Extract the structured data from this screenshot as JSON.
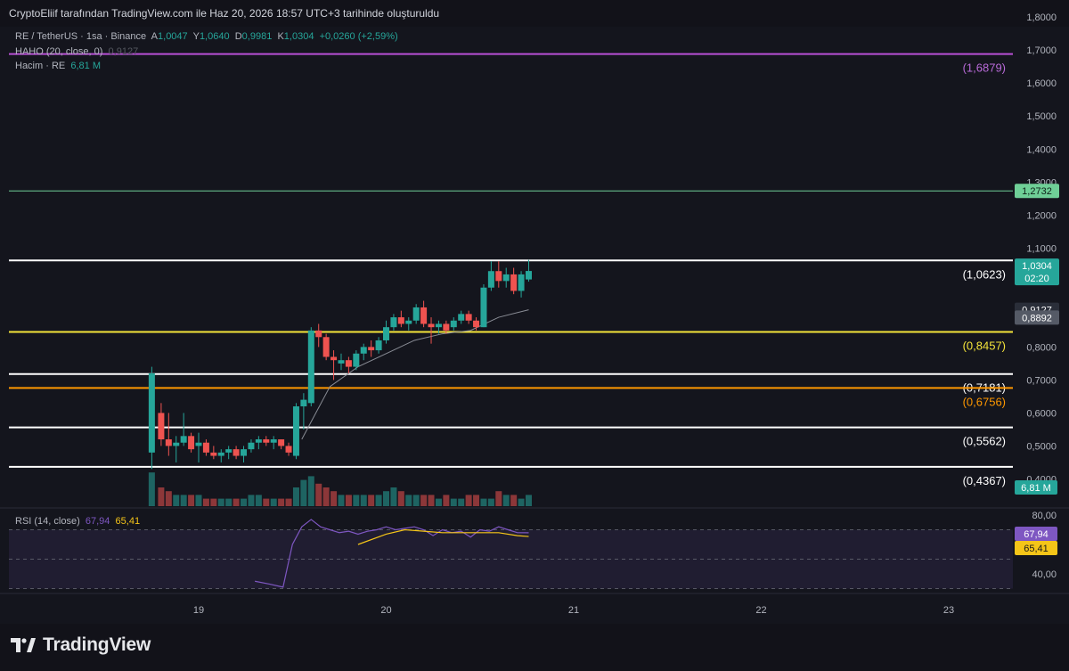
{
  "header": {
    "attribution": "CryptoEliif tarafından TradingView.com ile Haz 20, 2026 18:57 UTC+3 tarihinde oluşturuldu"
  },
  "legend": {
    "symbol": "RE / TetherUS · 1sa · Binance",
    "o_label": "A",
    "o_value": "1,0047",
    "h_label": "Y",
    "h_value": "1,0640",
    "l_label": "D",
    "l_value": "0,9981",
    "c_label": "K",
    "c_value": "1,0304",
    "change": "+0,0260 (+2,59%)",
    "ma_label": "HAHO (20, close, 0)",
    "ma_value": "0,9127",
    "volume_label": "Hacim · RE",
    "volume_value": "6,81 M",
    "rsi_label": "RSI (14, close)",
    "rsi_value": "67,94",
    "rsi_ma_value": "65,41"
  },
  "colors": {
    "up": "#26a69a",
    "down": "#ef5350",
    "purple_level": "#b84fd6",
    "green_level": "#6fcf97",
    "white_level": "#ffffff",
    "yellow_level": "#f5e53a",
    "orange_level": "#ff9800",
    "rsi_line": "#7e57c2",
    "rsi_ma": "#f5c518",
    "ma_line": "#8a8d96"
  },
  "chart_data": {
    "type": "candlestick",
    "price_axis": {
      "ticks": [
        {
          "v": 1.8,
          "label": "1,8000"
        },
        {
          "v": 1.7,
          "label": "1,7000"
        },
        {
          "v": 1.6,
          "label": "1,6000"
        },
        {
          "v": 1.5,
          "label": "1,5000"
        },
        {
          "v": 1.4,
          "label": "1,4000"
        },
        {
          "v": 1.3,
          "label": "1,3000"
        },
        {
          "v": 1.2,
          "label": "1,2000"
        },
        {
          "v": 1.1,
          "label": "1,1000"
        },
        {
          "v": 0.8,
          "label": "0,8000"
        },
        {
          "v": 0.7,
          "label": "0,7000"
        },
        {
          "v": 0.6,
          "label": "0,6000"
        },
        {
          "v": 0.5,
          "label": "0,5000"
        },
        {
          "v": 0.4,
          "label": "0,4000"
        }
      ]
    },
    "time_axis": {
      "ticks": [
        "19",
        "20",
        "21",
        "22",
        "23"
      ],
      "x_values": [
        19,
        20,
        21,
        22,
        23
      ]
    },
    "level_lines": [
      {
        "value": 1.6879,
        "label": "(1,6879)",
        "color": "#b84fd6",
        "text_color": "#b86ad8"
      },
      {
        "value": 1.2732,
        "label": "1,2732",
        "color": "#6fcf97",
        "badge": true
      },
      {
        "value": 1.0623,
        "label": "(1,0623)",
        "color": "#ffffff",
        "text_color": "#ffffff"
      },
      {
        "value": 0.8457,
        "label": "(0,8457)",
        "color": "#f5e53a",
        "text_color": "#f5e53a"
      },
      {
        "value": 0.7181,
        "label": "(0,7181)",
        "color": "#ffffff",
        "text_color": "#ffffff"
      },
      {
        "value": 0.6756,
        "label": "(0,6756)",
        "color": "#ff9800",
        "text_color": "#ff9800"
      },
      {
        "value": 0.5562,
        "label": "(0,5562)",
        "color": "#ffffff",
        "text_color": "#ffffff"
      },
      {
        "value": 0.4367,
        "label": "(0,4367)",
        "color": "#ffffff",
        "text_color": "#ffffff"
      }
    ],
    "candles": [
      {
        "t": 18.75,
        "o": 0.48,
        "h": 0.74,
        "l": 0.43,
        "c": 0.72
      },
      {
        "t": 18.8,
        "o": 0.6,
        "h": 0.63,
        "l": 0.5,
        "c": 0.52
      },
      {
        "t": 18.84,
        "o": 0.52,
        "h": 0.6,
        "l": 0.47,
        "c": 0.5
      },
      {
        "t": 18.88,
        "o": 0.5,
        "h": 0.53,
        "l": 0.45,
        "c": 0.51
      },
      {
        "t": 18.92,
        "o": 0.51,
        "h": 0.6,
        "l": 0.5,
        "c": 0.53
      },
      {
        "t": 18.96,
        "o": 0.53,
        "h": 0.54,
        "l": 0.48,
        "c": 0.49
      },
      {
        "t": 19.0,
        "o": 0.5,
        "h": 0.54,
        "l": 0.45,
        "c": 0.51
      },
      {
        "t": 19.04,
        "o": 0.51,
        "h": 0.52,
        "l": 0.47,
        "c": 0.48
      },
      {
        "t": 19.08,
        "o": 0.48,
        "h": 0.5,
        "l": 0.46,
        "c": 0.47
      },
      {
        "t": 19.12,
        "o": 0.47,
        "h": 0.49,
        "l": 0.45,
        "c": 0.48
      },
      {
        "t": 19.16,
        "o": 0.48,
        "h": 0.5,
        "l": 0.46,
        "c": 0.49
      },
      {
        "t": 19.2,
        "o": 0.49,
        "h": 0.5,
        "l": 0.46,
        "c": 0.47
      },
      {
        "t": 19.24,
        "o": 0.47,
        "h": 0.5,
        "l": 0.45,
        "c": 0.49
      },
      {
        "t": 19.28,
        "o": 0.49,
        "h": 0.52,
        "l": 0.48,
        "c": 0.51
      },
      {
        "t": 19.32,
        "o": 0.51,
        "h": 0.53,
        "l": 0.49,
        "c": 0.52
      },
      {
        "t": 19.36,
        "o": 0.52,
        "h": 0.53,
        "l": 0.5,
        "c": 0.51
      },
      {
        "t": 19.4,
        "o": 0.51,
        "h": 0.53,
        "l": 0.49,
        "c": 0.52
      },
      {
        "t": 19.44,
        "o": 0.52,
        "h": 0.52,
        "l": 0.49,
        "c": 0.5
      },
      {
        "t": 19.48,
        "o": 0.5,
        "h": 0.51,
        "l": 0.47,
        "c": 0.48
      },
      {
        "t": 19.52,
        "o": 0.47,
        "h": 0.63,
        "l": 0.46,
        "c": 0.62
      },
      {
        "t": 19.56,
        "o": 0.62,
        "h": 0.66,
        "l": 0.55,
        "c": 0.64
      },
      {
        "t": 19.6,
        "o": 0.63,
        "h": 0.86,
        "l": 0.62,
        "c": 0.85
      },
      {
        "t": 19.64,
        "o": 0.85,
        "h": 0.87,
        "l": 0.8,
        "c": 0.83
      },
      {
        "t": 19.68,
        "o": 0.83,
        "h": 0.84,
        "l": 0.76,
        "c": 0.77
      },
      {
        "t": 19.72,
        "o": 0.77,
        "h": 0.79,
        "l": 0.7,
        "c": 0.76
      },
      {
        "t": 19.76,
        "o": 0.75,
        "h": 0.78,
        "l": 0.73,
        "c": 0.76
      },
      {
        "t": 19.8,
        "o": 0.76,
        "h": 0.77,
        "l": 0.72,
        "c": 0.74
      },
      {
        "t": 19.84,
        "o": 0.74,
        "h": 0.79,
        "l": 0.73,
        "c": 0.78
      },
      {
        "t": 19.88,
        "o": 0.78,
        "h": 0.81,
        "l": 0.76,
        "c": 0.8
      },
      {
        "t": 19.92,
        "o": 0.8,
        "h": 0.82,
        "l": 0.77,
        "c": 0.79
      },
      {
        "t": 19.96,
        "o": 0.79,
        "h": 0.83,
        "l": 0.78,
        "c": 0.82
      },
      {
        "t": 20.0,
        "o": 0.82,
        "h": 0.88,
        "l": 0.81,
        "c": 0.86
      },
      {
        "t": 20.04,
        "o": 0.86,
        "h": 0.9,
        "l": 0.85,
        "c": 0.89
      },
      {
        "t": 20.08,
        "o": 0.89,
        "h": 0.91,
        "l": 0.86,
        "c": 0.87
      },
      {
        "t": 20.12,
        "o": 0.87,
        "h": 0.89,
        "l": 0.85,
        "c": 0.88
      },
      {
        "t": 20.16,
        "o": 0.88,
        "h": 0.93,
        "l": 0.87,
        "c": 0.92
      },
      {
        "t": 20.2,
        "o": 0.92,
        "h": 0.94,
        "l": 0.86,
        "c": 0.87
      },
      {
        "t": 20.24,
        "o": 0.87,
        "h": 0.89,
        "l": 0.81,
        "c": 0.86
      },
      {
        "t": 20.28,
        "o": 0.86,
        "h": 0.88,
        "l": 0.84,
        "c": 0.87
      },
      {
        "t": 20.32,
        "o": 0.87,
        "h": 0.88,
        "l": 0.84,
        "c": 0.85
      },
      {
        "t": 20.36,
        "o": 0.86,
        "h": 0.89,
        "l": 0.85,
        "c": 0.88
      },
      {
        "t": 20.4,
        "o": 0.88,
        "h": 0.91,
        "l": 0.87,
        "c": 0.9
      },
      {
        "t": 20.44,
        "o": 0.9,
        "h": 0.91,
        "l": 0.87,
        "c": 0.88
      },
      {
        "t": 20.48,
        "o": 0.88,
        "h": 0.89,
        "l": 0.85,
        "c": 0.86
      },
      {
        "t": 20.52,
        "o": 0.86,
        "h": 0.99,
        "l": 0.86,
        "c": 0.98
      },
      {
        "t": 20.56,
        "o": 0.98,
        "h": 1.06,
        "l": 0.97,
        "c": 1.03
      },
      {
        "t": 20.6,
        "o": 1.03,
        "h": 1.06,
        "l": 0.98,
        "c": 1.0
      },
      {
        "t": 20.64,
        "o": 1.0,
        "h": 1.04,
        "l": 0.98,
        "c": 1.02
      },
      {
        "t": 20.68,
        "o": 1.02,
        "h": 1.04,
        "l": 0.96,
        "c": 0.97
      },
      {
        "t": 20.72,
        "o": 0.97,
        "h": 1.03,
        "l": 0.95,
        "c": 1.02
      },
      {
        "t": 20.76,
        "o": 1.0047,
        "h": 1.064,
        "l": 0.9981,
        "c": 1.0304
      }
    ],
    "ma": {
      "x": [
        19.55,
        19.7,
        19.85,
        20.0,
        20.15,
        20.3,
        20.45,
        20.6,
        20.76
      ],
      "y": [
        0.52,
        0.68,
        0.74,
        0.78,
        0.82,
        0.84,
        0.85,
        0.89,
        0.9127
      ]
    },
    "volume": [
      9,
      5,
      4,
      3,
      3,
      3,
      3,
      2,
      2,
      2,
      2,
      2,
      2,
      3,
      3,
      2,
      2,
      2,
      2,
      5,
      7,
      8,
      6,
      5,
      4,
      3,
      3,
      3,
      3,
      3,
      3,
      4,
      5,
      4,
      3,
      3,
      3,
      3,
      2,
      3,
      2,
      2,
      3,
      3,
      2,
      2,
      4,
      3,
      3,
      2,
      3
    ],
    "price_badges": [
      {
        "value": 1.0304,
        "label": "1,0304",
        "sub": "02:20",
        "color": "#26a69a"
      },
      {
        "value": 0.9127,
        "label": "0,9127",
        "color": "#2a2e39"
      },
      {
        "value": 0.8892,
        "label": "0,8892",
        "color": "#555a66"
      }
    ],
    "volume_badge": {
      "label": "6,81 M",
      "color": "#26a69a"
    },
    "rsi": {
      "ticks": [
        {
          "v": 80,
          "label": "80,00"
        },
        {
          "v": 40,
          "label": "40,00"
        }
      ],
      "upper_band": 70,
      "lower_band": 30,
      "x": [
        19.3,
        19.38,
        19.45,
        19.5,
        19.55,
        19.6,
        19.65,
        19.7,
        19.75,
        19.8,
        19.85,
        19.9,
        19.95,
        20.0,
        20.05,
        20.1,
        20.15,
        20.2,
        20.25,
        20.3,
        20.35,
        20.4,
        20.45,
        20.5,
        20.55,
        20.6,
        20.65,
        20.7,
        20.76
      ],
      "y": [
        35,
        33,
        31,
        60,
        72,
        77,
        72,
        70,
        68,
        69,
        67,
        69,
        70,
        72,
        70,
        71,
        72,
        70,
        66,
        70,
        68,
        69,
        65,
        70,
        69,
        72,
        70,
        68,
        67.94
      ],
      "ma_x": [
        19.85,
        20.0,
        20.1,
        20.2,
        20.3,
        20.4,
        20.5,
        20.6,
        20.7,
        20.76
      ],
      "ma_y": [
        60,
        67,
        70,
        69,
        68,
        68,
        68,
        68,
        66,
        65.41
      ],
      "badges": [
        {
          "value": 67.94,
          "label": "67,94",
          "color": "#7e57c2"
        },
        {
          "value": 65.41,
          "label": "65,41",
          "color": "#f5c518"
        }
      ]
    }
  },
  "branding": {
    "logo_text": "TradingView"
  }
}
